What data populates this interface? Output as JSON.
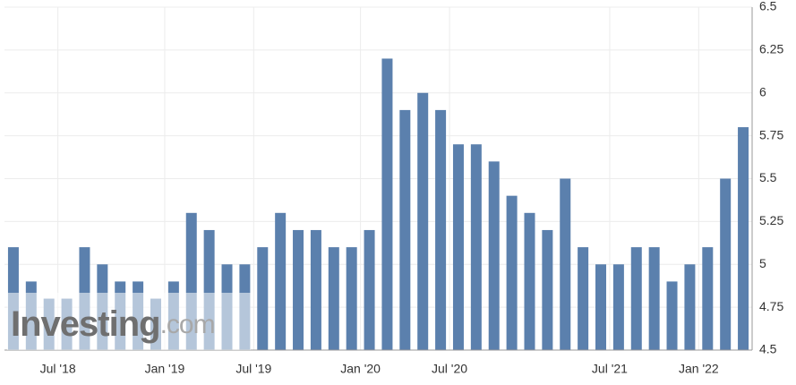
{
  "chart_data": {
    "type": "bar",
    "categories": [
      null,
      null,
      null,
      "Jul '18",
      null,
      null,
      null,
      null,
      null,
      "Jan '19",
      null,
      null,
      null,
      null,
      "Jul '19",
      null,
      null,
      null,
      null,
      null,
      "Jan '20",
      null,
      null,
      null,
      null,
      "Jul '20",
      null,
      null,
      null,
      null,
      null,
      null,
      null,
      null,
      "Jul '21",
      null,
      null,
      null,
      null,
      "Jan '22",
      null,
      null
    ],
    "values": [
      5.1,
      4.9,
      4.8,
      4.8,
      5.1,
      5.0,
      4.9,
      4.9,
      4.8,
      4.9,
      5.3,
      5.2,
      5.0,
      5.0,
      5.1,
      5.3,
      5.2,
      5.2,
      5.1,
      5.1,
      5.2,
      6.2,
      5.9,
      6.0,
      5.9,
      5.7,
      5.7,
      5.6,
      5.4,
      5.3,
      5.2,
      5.5,
      5.1,
      5.0,
      5.0,
      5.1,
      5.1,
      4.9,
      5.0,
      5.1,
      5.5,
      5.8
    ],
    "color": "#5b80ad",
    "ylim": [
      4.5,
      6.5
    ],
    "yticks": [
      4.5,
      4.75,
      5,
      5.25,
      5.5,
      5.75,
      6,
      6.25,
      6.5
    ],
    "grid": true,
    "y_axis_side": "right",
    "logo": {
      "name": "Investing",
      "suffix": ".com"
    }
  }
}
